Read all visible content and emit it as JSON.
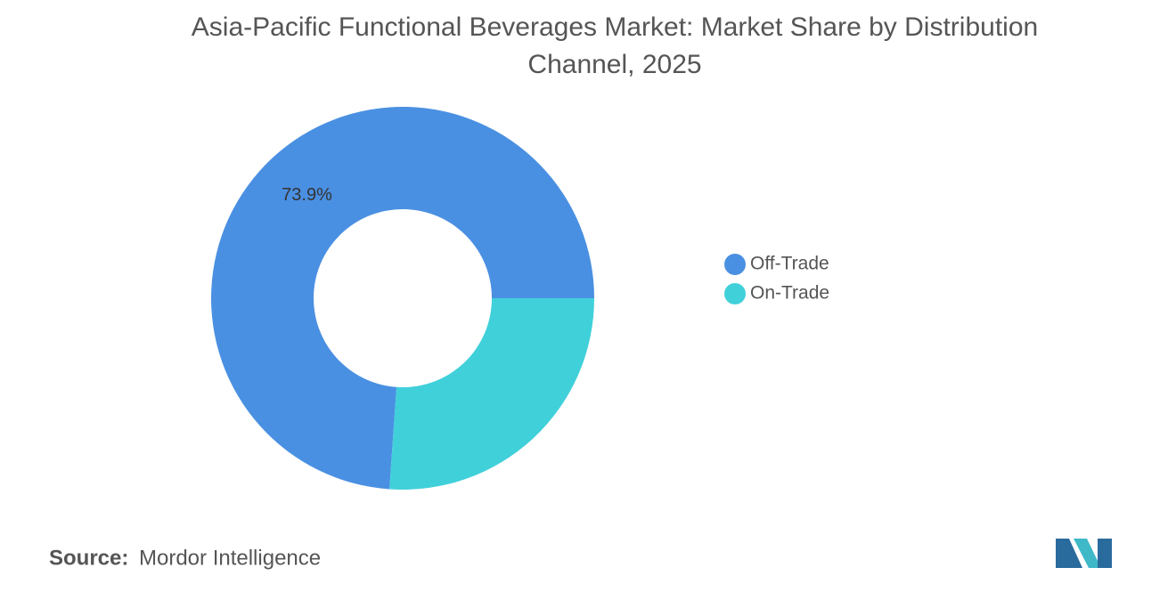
{
  "chart_data": {
    "type": "donut",
    "title": "Asia-Pacific Functional Beverages Market: Market Share by Distribution Channel, 2025",
    "categories": [
      "Off-Trade",
      "On-Trade"
    ],
    "values": [
      73.9,
      26.1
    ],
    "value_labels": [
      "73.9%",
      null
    ],
    "colors": [
      "#4a90e2",
      "#40d0da"
    ],
    "legend": "right"
  },
  "footer": {
    "source_label": "Source:",
    "source": "Mordor Intelligence"
  }
}
